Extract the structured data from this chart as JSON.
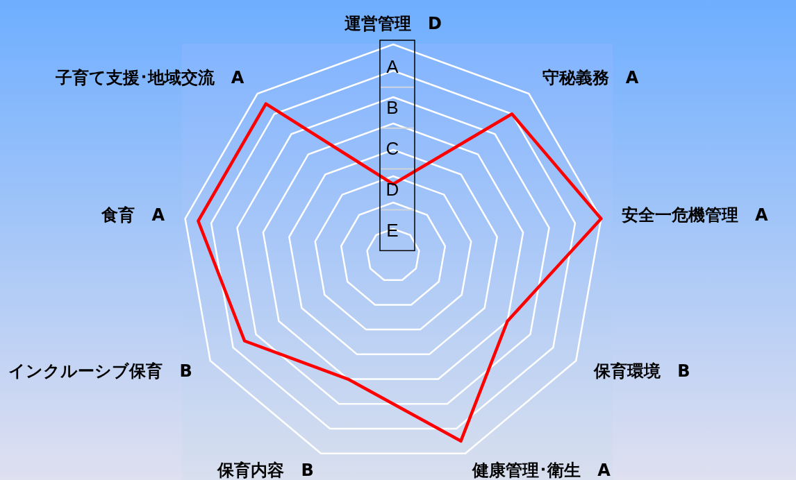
{
  "chart_data": {
    "type": "radar",
    "categories": [
      "運営管理",
      "守秘義務",
      "安全一危機管理",
      "保育環境",
      "健康管理･衛生",
      "保育内容",
      "インクルーシブ保育",
      "食育",
      "子育て支援･地域交流"
    ],
    "series": [
      {
        "color": "#ff0000",
        "values": [
          2.7,
          7.0,
          8.0,
          5.0,
          7.5,
          5.0,
          6.5,
          7.5,
          7.5
        ]
      }
    ],
    "value_labels": [
      "D",
      "A",
      "A",
      "B",
      "A",
      "B",
      "B",
      "A",
      "A"
    ],
    "ylim": [
      0,
      8
    ],
    "yticks": [
      {
        "value": 7.15,
        "label": "A"
      },
      {
        "value": 5.6,
        "label": "B"
      },
      {
        "value": 4.05,
        "label": "C"
      },
      {
        "value": 2.5,
        "label": "D"
      },
      {
        "value": 0.95,
        "label": "E"
      }
    ],
    "grid": true
  }
}
